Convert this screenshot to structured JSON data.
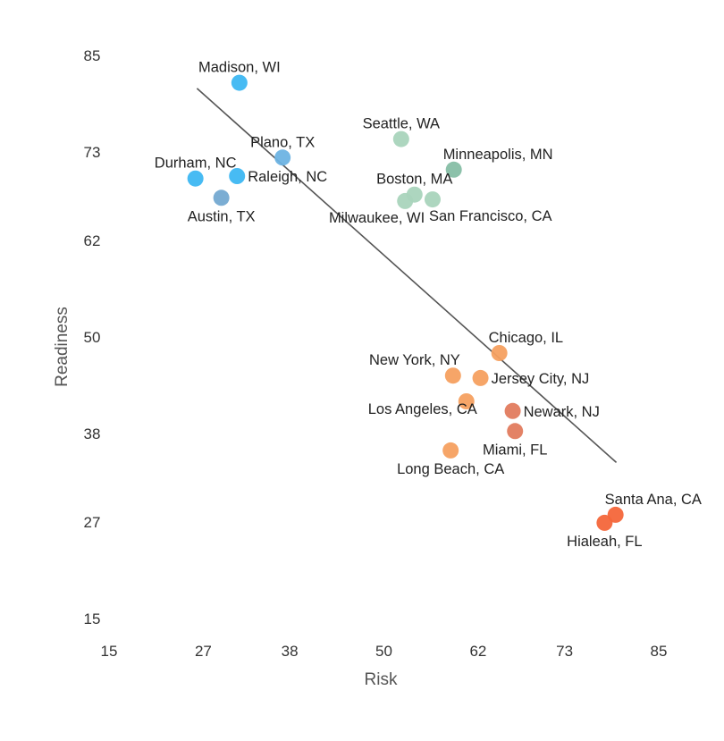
{
  "chart_data": {
    "type": "scatter",
    "title": "",
    "xlabel": "Risk",
    "ylabel": "Readiness",
    "xlim": [
      15,
      85
    ],
    "ylim": [
      15,
      85
    ],
    "xticks": [
      "15",
      "27",
      "38",
      "50",
      "62",
      "73",
      "85"
    ],
    "yticks": [
      "85",
      "73",
      "62",
      "50",
      "38",
      "27",
      "15"
    ],
    "xtick_values": [
      15,
      27,
      38,
      50,
      62,
      73,
      85
    ],
    "ytick_values": [
      85,
      73,
      62,
      50,
      38,
      27,
      15
    ],
    "grid": false,
    "trendline": {
      "x": [
        26.2,
        79.6
      ],
      "y": [
        80.9,
        34.4
      ],
      "color": "#555555"
    },
    "points": [
      {
        "label": "Madison, WI",
        "x": 31.6,
        "y": 81.6,
        "color": "#3db7f2",
        "label_pos": "above"
      },
      {
        "label": "Plano, TX",
        "x": 37.1,
        "y": 72.3,
        "color": "#6db3e3",
        "label_pos": "above"
      },
      {
        "label": "Durham, NC",
        "x": 26.0,
        "y": 69.7,
        "color": "#3db7f2",
        "label_pos": "above"
      },
      {
        "label": "Raleigh, NC",
        "x": 31.3,
        "y": 70.0,
        "color": "#3db7f2",
        "label_pos": "right"
      },
      {
        "label": "Austin, TX",
        "x": 29.3,
        "y": 67.3,
        "color": "#74a9d1",
        "label_pos": "below"
      },
      {
        "label": "Seattle, WA",
        "x": 52.2,
        "y": 74.6,
        "color": "#a9d4bc",
        "label_pos": "above"
      },
      {
        "label": "Minneapolis, MN",
        "x": 58.9,
        "y": 70.8,
        "color": "#86bea5",
        "label_pos": "above-right"
      },
      {
        "label": "Boston, MA",
        "x": 53.9,
        "y": 67.7,
        "color": "#a9d4bc",
        "label_pos": "above"
      },
      {
        "label": "Milwaukee, WI",
        "x": 52.7,
        "y": 66.9,
        "color": "#a9d4bc",
        "label_pos": "below-left"
      },
      {
        "label": "San Francisco, CA",
        "x": 56.2,
        "y": 67.1,
        "color": "#a9d4bc",
        "label_pos": "below-right"
      },
      {
        "label": "Chicago, IL",
        "x": 64.7,
        "y": 48.0,
        "color": "#f5a060",
        "label_pos": "above-right"
      },
      {
        "label": "New York, NY",
        "x": 58.8,
        "y": 45.2,
        "color": "#f5a060",
        "label_pos": "above-left"
      },
      {
        "label": "Jersey City, NJ",
        "x": 62.3,
        "y": 44.9,
        "color": "#f5a060",
        "label_pos": "right"
      },
      {
        "label": "Los Angeles, CA",
        "x": 60.5,
        "y": 42.0,
        "color": "#f5a060",
        "label_pos": "left-below"
      },
      {
        "label": "Newark, NJ",
        "x": 66.4,
        "y": 40.8,
        "color": "#e27b5e",
        "label_pos": "right"
      },
      {
        "label": "Miami, FL",
        "x": 66.7,
        "y": 38.3,
        "color": "#e27b5e",
        "label_pos": "below"
      },
      {
        "label": "Long Beach, CA",
        "x": 58.5,
        "y": 35.9,
        "color": "#f5a060",
        "label_pos": "below"
      },
      {
        "label": "Santa Ana, CA",
        "x": 79.5,
        "y": 27.9,
        "color": "#f4663a",
        "label_pos": "above-right"
      },
      {
        "label": "Hialeah, FL",
        "x": 78.1,
        "y": 26.9,
        "color": "#f4663a",
        "label_pos": "below"
      }
    ]
  }
}
